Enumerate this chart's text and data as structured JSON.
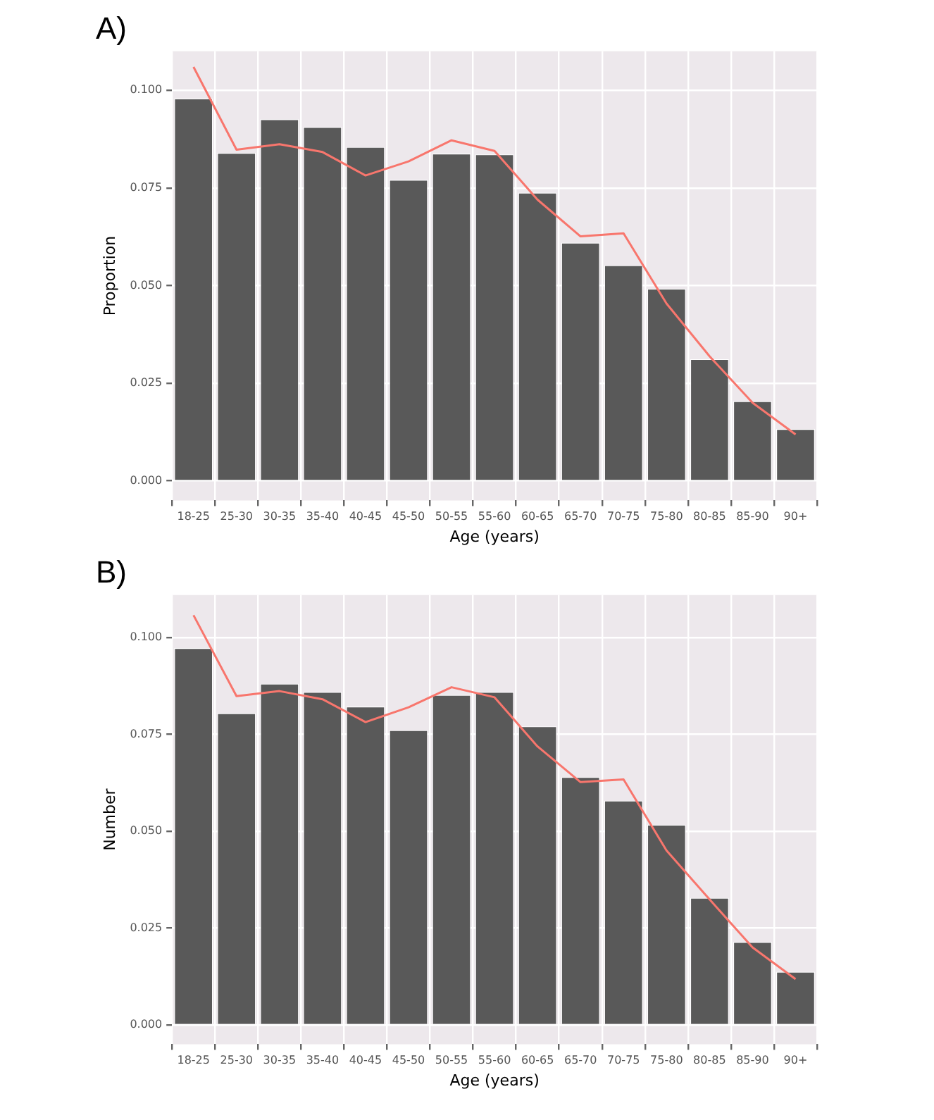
{
  "chart_data": [
    {
      "type": "bar",
      "title": "A)",
      "xlabel": "Age (years)",
      "ylabel": "Proportion",
      "categories": [
        "18-25",
        "25-30",
        "30-35",
        "35-40",
        "40-45",
        "45-50",
        "50-55",
        "55-60",
        "60-65",
        "65-70",
        "70-75",
        "75-80",
        "80-85",
        "85-90",
        "90+"
      ],
      "series": [
        {
          "color": "#595959",
          "values": [
            0.0979,
            0.084,
            0.0926,
            0.0906,
            0.0855,
            0.0771,
            0.0838,
            0.0836,
            0.0738,
            0.061,
            0.0552,
            0.0492,
            0.0312,
            0.0204,
            0.0133
          ]
        },
        {
          "type": "line",
          "color": "#f8766d",
          "values": [
            0.106,
            0.0848,
            0.0862,
            0.0842,
            0.0782,
            0.0818,
            0.0872,
            0.0845,
            0.072,
            0.0626,
            0.0634,
            0.0454,
            0.0319,
            0.02,
            0.0119
          ]
        }
      ],
      "ylim": [
        -0.005,
        0.11
      ],
      "yticks": [
        {
          "value": 0,
          "label": "0.000"
        },
        {
          "value": 0.025,
          "label": "0.025"
        },
        {
          "value": 0.05,
          "label": "0.050"
        },
        {
          "value": 0.075,
          "label": "0.075"
        },
        {
          "value": 0.1,
          "label": "0.100"
        }
      ],
      "grid": true,
      "legend": false,
      "marker": "none",
      "line_style": "solid"
    },
    {
      "type": "bar",
      "title": "B)",
      "xlabel": "Age (years)",
      "ylabel": "Number",
      "categories": [
        "18-25",
        "25-30",
        "30-35",
        "35-40",
        "40-45",
        "45-50",
        "50-55",
        "55-60",
        "60-65",
        "65-70",
        "70-75",
        "75-80",
        "80-85",
        "85-90",
        "90+"
      ],
      "series": [
        {
          "color": "#595959",
          "values": [
            0.0973,
            0.0805,
            0.0881,
            0.086,
            0.0822,
            0.0761,
            0.0852,
            0.086,
            0.0771,
            0.064,
            0.0579,
            0.0517,
            0.0328,
            0.0214,
            0.0137
          ]
        },
        {
          "type": "line",
          "color": "#f8766d",
          "values": [
            0.1058,
            0.0849,
            0.0862,
            0.0841,
            0.0782,
            0.082,
            0.0872,
            0.0846,
            0.0719,
            0.0627,
            0.0634,
            0.045,
            0.0324,
            0.02,
            0.0118
          ]
        }
      ],
      "ylim": [
        -0.005,
        0.111
      ],
      "yticks": [
        {
          "value": 0,
          "label": "0.000"
        },
        {
          "value": 0.025,
          "label": "0.025"
        },
        {
          "value": 0.05,
          "label": "0.050"
        },
        {
          "value": 0.075,
          "label": "0.075"
        },
        {
          "value": 0.1,
          "label": "0.100"
        }
      ],
      "grid": true,
      "legend": false,
      "marker": "none",
      "line_style": "solid"
    }
  ]
}
